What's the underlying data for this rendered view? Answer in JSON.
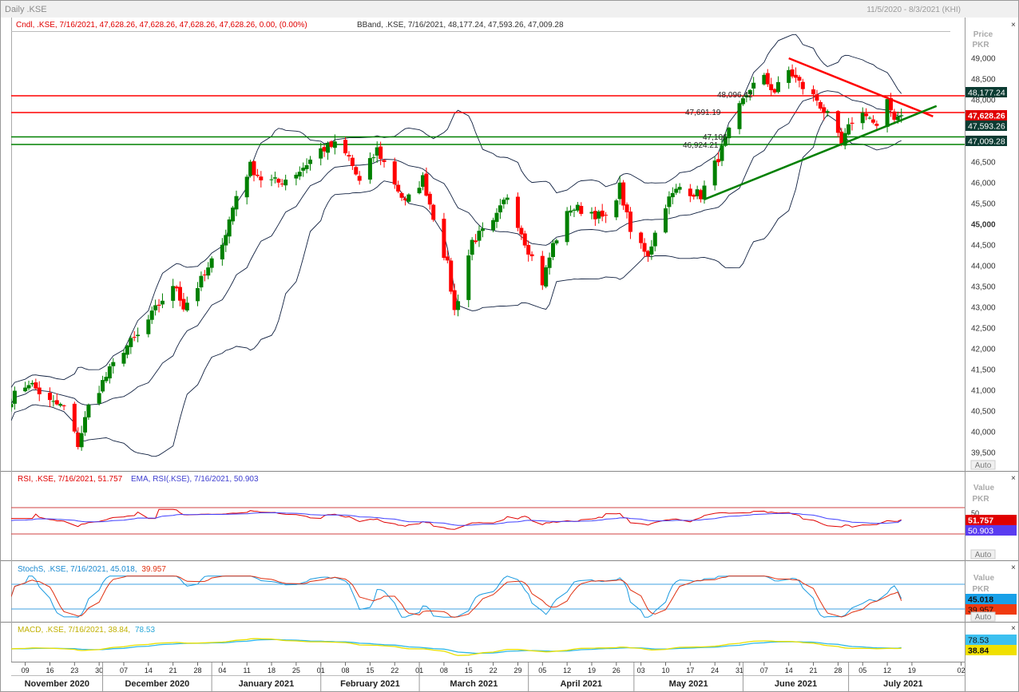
{
  "window": {
    "title": "Daily .KSE",
    "date_range": "11/5/2020 - 8/3/2021 (KHI)"
  },
  "headers": {
    "price_cndl": "Cndl, .KSE, 7/16/2021, 47,628.26, 47,628.26, 47,628.26, 47,628.26, 0.00, (0.00%)",
    "price_bband": "BBand, .KSE, 7/16/2021, 48,177.24, 47,593.26, 47,009.28",
    "rsi_a": "RSI, .KSE, 7/16/2021, 51.757",
    "rsi_b": "EMA, RSI(.KSE), 7/16/2021, 50.903",
    "stoch": "StochS, .KSE, 7/16/2021, 45.018,",
    "stoch_b": "39.957",
    "macd": "MACD, .KSE, 7/16/2021, 38.84,",
    "macd_b": "78.53"
  },
  "axis": {
    "price_title": "Price",
    "price_unit": "PKR",
    "value_title": "Value",
    "value_unit": "PKR",
    "auto_label": "Auto",
    "rsi_ticks": [
      "50"
    ],
    "price_ticks": [
      "49,000",
      "48,500",
      "48,000",
      "47,500",
      "47,000",
      "46,500",
      "46,000",
      "45,500",
      "45,000",
      "44,500",
      "44,000",
      "43,500",
      "43,000",
      "42,500",
      "42,000",
      "41,500",
      "41,000",
      "40,500",
      "40,000",
      "39,500"
    ],
    "day_ticks": [
      "09",
      "16",
      "23",
      "30",
      "07",
      "14",
      "21",
      "28",
      "04",
      "11",
      "18",
      "25",
      "01",
      "08",
      "15",
      "22",
      "01",
      "08",
      "15",
      "22",
      "29",
      "05",
      "12",
      "19",
      "26",
      "03",
      "10",
      "17",
      "24",
      "31",
      "07",
      "14",
      "21",
      "28",
      "05",
      "12",
      "19",
      "02"
    ],
    "months": [
      "November 2020",
      "December 2020",
      "January 2021",
      "February 2021",
      "March 2021",
      "April 2021",
      "May 2021",
      "June 2021",
      "July 2021"
    ]
  },
  "price_badges": {
    "bb_upper": "48,177.24",
    "last": "47,628.26",
    "bb_mid": "47,593.26",
    "bb_lower": "47,009.28"
  },
  "rsi_badges": {
    "rsi": "51.757",
    "ema": "50.903"
  },
  "stoch_badges": {
    "k": "45.018",
    "d": "39.957"
  },
  "macd_badges": {
    "signal": "78.53",
    "macd": "38.84"
  },
  "level_labels": {
    "l1": "48,096.42",
    "l2": "47,691.19",
    "l3": "47,106",
    "l4": "46,924.21"
  },
  "colors": {
    "up": "#008000",
    "down": "#ff0000",
    "resistance": "#ff0000",
    "support": "#008000",
    "bband": "#102040",
    "rsi": "#e00000",
    "rsi_ema": "#4040ff",
    "stoch_k": "#1a9ae0",
    "stoch_d": "#e03010",
    "macd": "#e8e000",
    "macd_signal": "#30b8e8",
    "badge_dark": "#0b3b32",
    "badge_red": "#e00000",
    "badge_rsi_ema": "#5a3cf0",
    "badge_stoch_k": "#18a0e8",
    "badge_stoch_d": "#f03a10",
    "badge_macd_sig": "#3cc0f0",
    "badge_macd": "#f0e000"
  },
  "chart_data": {
    "type": "candlestick",
    "title": "Daily .KSE",
    "ylabel": "Price PKR",
    "ylim": [
      39200,
      49400
    ],
    "x_range": [
      "2020-11-05",
      "2021-08-03"
    ],
    "last_close": 47628.26,
    "bollinger": {
      "upper": 48177.24,
      "middle": 47593.26,
      "lower": 47009.28
    },
    "horizontal_levels": [
      {
        "value": 48096.42,
        "color": "red"
      },
      {
        "value": 47691.19,
        "color": "red"
      },
      {
        "value": 47106,
        "color": "green"
      },
      {
        "value": 46924.21,
        "color": "green"
      }
    ],
    "trendlines": [
      {
        "color": "red",
        "from": [
          "2021-06-14",
          49000
        ],
        "to": [
          "2021-07-25",
          47600
        ]
      },
      {
        "color": "green",
        "from": [
          "2021-05-21",
          45600
        ],
        "to": [
          "2021-07-26",
          47850
        ]
      }
    ],
    "close_path": [
      [
        "2020-11-05",
        40800
      ],
      [
        "2020-11-10",
        41200
      ],
      [
        "2020-11-16",
        40700
      ],
      [
        "2020-11-20",
        40600
      ],
      [
        "2020-11-24",
        39700
      ],
      [
        "2020-11-27",
        40600
      ],
      [
        "2020-12-01",
        41200
      ],
      [
        "2020-12-07",
        42000
      ],
      [
        "2020-12-11",
        42300
      ],
      [
        "2020-12-18",
        43200
      ],
      [
        "2020-12-22",
        43500
      ],
      [
        "2020-12-24",
        43000
      ],
      [
        "2020-12-31",
        43900
      ],
      [
        "2021-01-05",
        44800
      ],
      [
        "2021-01-08",
        45700
      ],
      [
        "2021-01-12",
        46400
      ],
      [
        "2021-01-15",
        46100
      ],
      [
        "2021-01-20",
        46000
      ],
      [
        "2021-01-26",
        46300
      ],
      [
        "2021-02-01",
        46800
      ],
      [
        "2021-02-05",
        46900
      ],
      [
        "2021-02-09",
        46600
      ],
      [
        "2021-02-12",
        46000
      ],
      [
        "2021-02-17",
        46800
      ],
      [
        "2021-02-22",
        46000
      ],
      [
        "2021-02-25",
        45500
      ],
      [
        "2021-03-02",
        46100
      ],
      [
        "2021-03-05",
        45200
      ],
      [
        "2021-03-09",
        44000
      ],
      [
        "2021-03-11",
        42900
      ],
      [
        "2021-03-16",
        44600
      ],
      [
        "2021-03-22",
        45000
      ],
      [
        "2021-03-26",
        45700
      ],
      [
        "2021-03-31",
        44600
      ],
      [
        "2021-04-05",
        43600
      ],
      [
        "2021-04-08",
        44500
      ],
      [
        "2021-04-13",
        45400
      ],
      [
        "2021-04-19",
        45300
      ],
      [
        "2021-04-23",
        45100
      ],
      [
        "2021-04-27",
        45900
      ],
      [
        "2021-04-30",
        44800
      ],
      [
        "2021-05-05",
        44300
      ],
      [
        "2021-05-10",
        45500
      ],
      [
        "2021-05-14",
        45900
      ],
      [
        "2021-05-20",
        45700
      ],
      [
        "2021-05-26",
        46800
      ],
      [
        "2021-05-31",
        47800
      ],
      [
        "2021-06-03",
        48300
      ],
      [
        "2021-06-07",
        48500
      ],
      [
        "2021-06-10",
        48200
      ],
      [
        "2021-06-14",
        48700
      ],
      [
        "2021-06-18",
        48300
      ],
      [
        "2021-06-22",
        48000
      ],
      [
        "2021-06-25",
        47600
      ],
      [
        "2021-06-29",
        46900
      ],
      [
        "2021-07-02",
        47500
      ],
      [
        "2021-07-06",
        47700
      ],
      [
        "2021-07-09",
        47300
      ],
      [
        "2021-07-12",
        47900
      ],
      [
        "2021-07-14",
        47600
      ],
      [
        "2021-07-16",
        47628
      ]
    ],
    "rsi": {
      "last": 51.757,
      "ema": 50.903,
      "upper_band": 70,
      "lower_band": 30
    },
    "stochastic": {
      "k": 45.018,
      "d": 39.957,
      "upper_band": 80,
      "lower_band": 20
    },
    "macd": {
      "macd": 38.84,
      "signal": 78.53
    }
  }
}
